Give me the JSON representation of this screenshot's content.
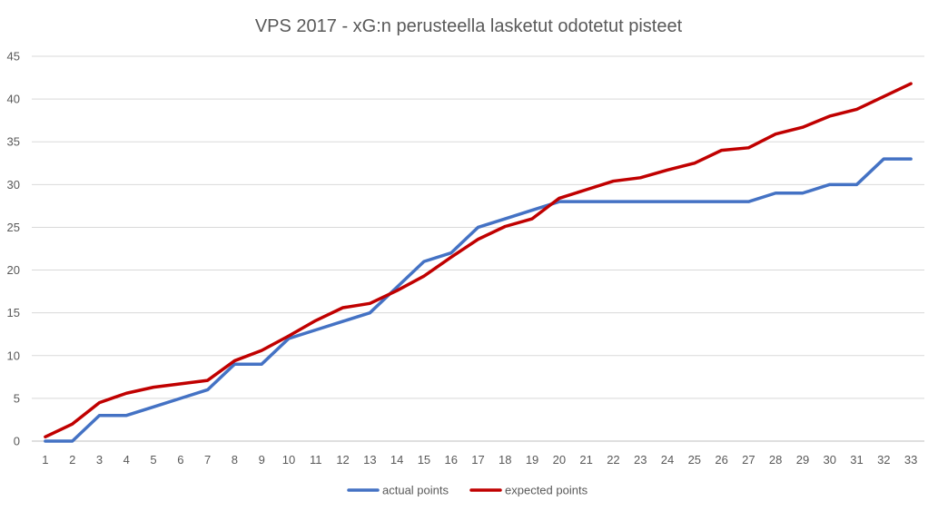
{
  "chart_data": {
    "type": "line",
    "title": "VPS 2017 - xG:n perusteella lasketut odotetut pisteet",
    "xlabel": "",
    "ylabel": "",
    "x": [
      1,
      2,
      3,
      4,
      5,
      6,
      7,
      8,
      9,
      10,
      11,
      12,
      13,
      14,
      15,
      16,
      17,
      18,
      19,
      20,
      21,
      22,
      23,
      24,
      25,
      26,
      27,
      28,
      29,
      30,
      31,
      32,
      33
    ],
    "ylim": [
      0,
      45
    ],
    "yticks": [
      0,
      5,
      10,
      15,
      20,
      25,
      30,
      35,
      40,
      45
    ],
    "grid": true,
    "legend_position": "bottom",
    "series": [
      {
        "name": "actual points",
        "color": "#4472c4",
        "values": [
          0,
          0,
          3,
          3,
          4,
          5,
          6,
          9,
          9,
          12,
          13,
          14,
          15,
          18,
          21,
          22,
          25,
          26,
          27,
          28,
          28,
          28,
          28,
          28,
          28,
          28,
          28,
          29,
          29,
          30,
          30,
          33,
          33
        ]
      },
      {
        "name": "expected points",
        "color": "#c00000",
        "values": [
          0.5,
          2.0,
          4.5,
          5.6,
          6.3,
          6.7,
          7.1,
          9.4,
          10.6,
          12.3,
          14.1,
          15.6,
          16.1,
          17.6,
          19.3,
          21.5,
          23.6,
          25.1,
          26.0,
          28.4,
          29.4,
          30.4,
          30.8,
          31.7,
          32.5,
          34.0,
          34.3,
          35.9,
          36.7,
          38.0,
          38.8,
          40.3,
          41.8
        ]
      }
    ]
  }
}
